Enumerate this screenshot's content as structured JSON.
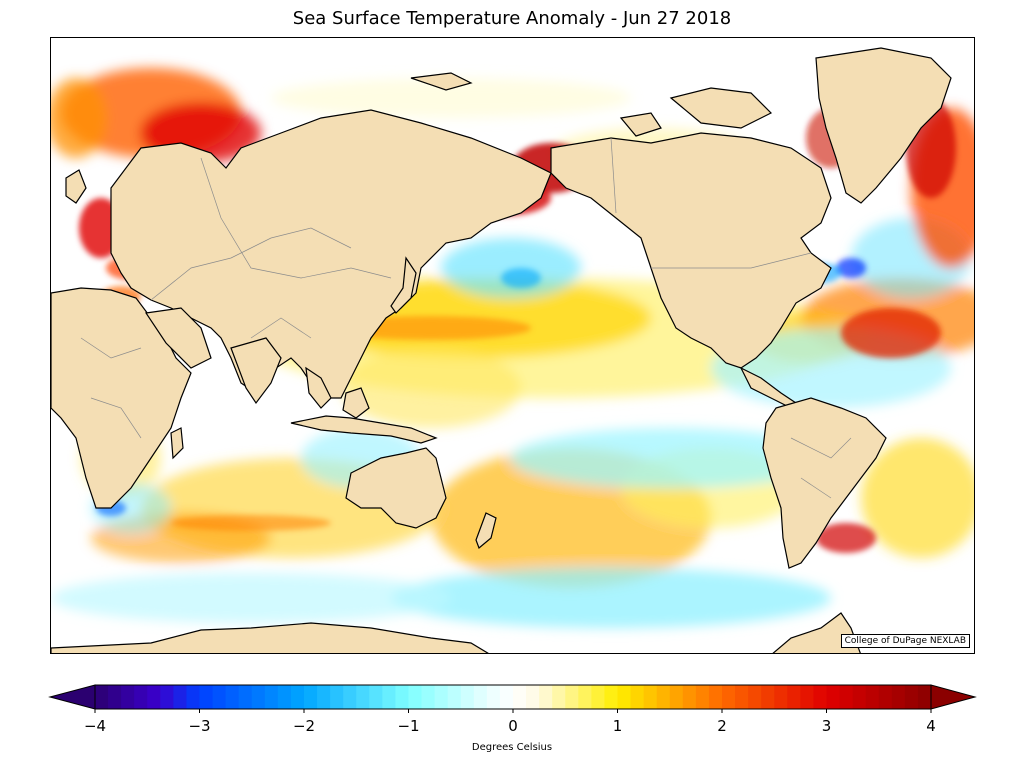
{
  "title": "Sea Surface Temperature Anomaly - Jun 27 2018",
  "credit": "College of DuPage NEXLAB",
  "colorbar": {
    "label": "Degrees Celsius",
    "min": -4,
    "max": 4,
    "ticks": [
      "−4",
      "−3",
      "−2",
      "−1",
      "0",
      "1",
      "2",
      "3",
      "4"
    ],
    "stops": [
      {
        "v": -4,
        "c": "#2b0070"
      },
      {
        "v": -3.4,
        "c": "#3a00cc"
      },
      {
        "v": -3,
        "c": "#0040ff"
      },
      {
        "v": -2,
        "c": "#00a6ff"
      },
      {
        "v": -1,
        "c": "#7fffff"
      },
      {
        "v": -0.25,
        "c": "#e8ffff"
      },
      {
        "v": 0,
        "c": "#ffffff"
      },
      {
        "v": 0.25,
        "c": "#fffae0"
      },
      {
        "v": 1,
        "c": "#ffee00"
      },
      {
        "v": 2,
        "c": "#ff6a00"
      },
      {
        "v": 3,
        "c": "#e00000"
      },
      {
        "v": 4,
        "c": "#8b0000"
      }
    ]
  },
  "colors": {
    "land": "#f4deb4",
    "coast": "#000000",
    "border": "#8c8c8c",
    "ocean_neutral": "#ffffff"
  }
}
